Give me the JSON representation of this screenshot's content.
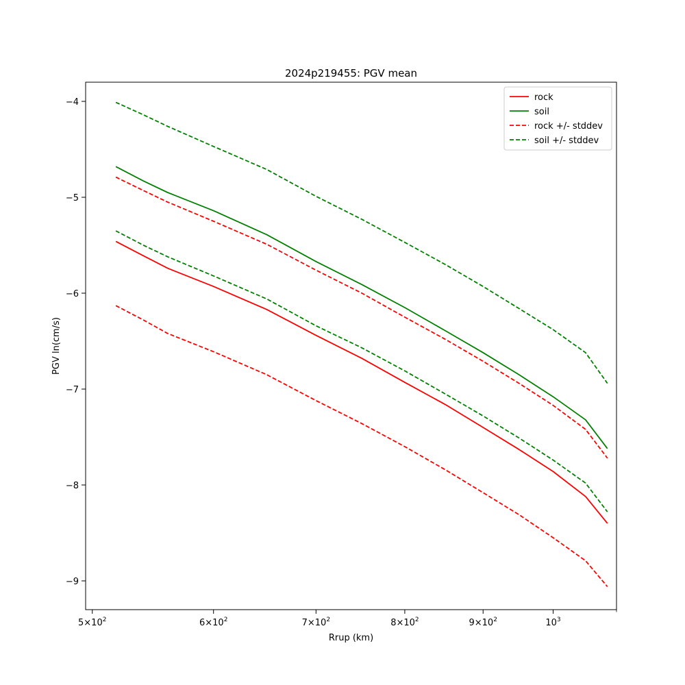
{
  "chart_data": {
    "type": "line",
    "title": "2024p219455: PGV mean",
    "xlabel": "Rrup (km)",
    "ylabel": "PGV ln(cm/s)",
    "xscale": "log",
    "xlim": [
      495,
      1100
    ],
    "ylim": [
      -9.3,
      -3.8
    ],
    "x_ticks": [
      {
        "value": 500,
        "label": "5×10²",
        "base": "5×10",
        "exp": "2"
      },
      {
        "value": 600,
        "label": "6×10²",
        "base": "6×10",
        "exp": "2"
      },
      {
        "value": 700,
        "label": "7×10²",
        "base": "7×10",
        "exp": "2"
      },
      {
        "value": 800,
        "label": "8×10²",
        "base": "8×10",
        "exp": "2"
      },
      {
        "value": 900,
        "label": "9×10²",
        "base": "9×10",
        "exp": "2"
      },
      {
        "value": 1000,
        "label": "10³",
        "base": "10",
        "exp": "3"
      }
    ],
    "y_ticks": [
      {
        "value": -4,
        "label": "−4"
      },
      {
        "value": -5,
        "label": "−5"
      },
      {
        "value": -6,
        "label": "−6"
      },
      {
        "value": -7,
        "label": "−7"
      },
      {
        "value": -8,
        "label": "−8"
      },
      {
        "value": -9,
        "label": "−9"
      }
    ],
    "legend_position": "top-right",
    "grid": false,
    "series": [
      {
        "name": "rock",
        "color": "#ff0000",
        "style": "solid",
        "x": [
          518,
          540,
          560,
          600,
          650,
          700,
          750,
          800,
          850,
          900,
          950,
          1000,
          1050,
          1085
        ],
        "y": [
          -5.46,
          -5.61,
          -5.74,
          -5.93,
          -6.17,
          -6.44,
          -6.68,
          -6.93,
          -7.16,
          -7.4,
          -7.63,
          -7.86,
          -8.12,
          -8.4
        ]
      },
      {
        "name": "soil",
        "color": "#008000",
        "style": "solid",
        "x": [
          518,
          540,
          560,
          600,
          650,
          700,
          750,
          800,
          850,
          900,
          950,
          1000,
          1050,
          1085
        ],
        "y": [
          -4.68,
          -4.83,
          -4.95,
          -5.14,
          -5.39,
          -5.67,
          -5.91,
          -6.15,
          -6.39,
          -6.62,
          -6.85,
          -7.08,
          -7.32,
          -7.62
        ]
      },
      {
        "name": "rock +/- stddev",
        "color": "#ff0000",
        "style": "dashed",
        "x": [
          518,
          540,
          560,
          600,
          650,
          700,
          750,
          800,
          850,
          900,
          950,
          1000,
          1050,
          1085
        ],
        "y": [
          -4.79,
          -4.93,
          -5.05,
          -5.25,
          -5.49,
          -5.76,
          -6.0,
          -6.25,
          -6.48,
          -6.71,
          -6.94,
          -7.17,
          -7.42,
          -7.72
        ]
      },
      {
        "name": "soil +/- stddev",
        "color": "#008000",
        "style": "dashed",
        "x": [
          518,
          540,
          560,
          600,
          650,
          700,
          750,
          800,
          850,
          900,
          950,
          1000,
          1050,
          1085
        ],
        "y": [
          -4.01,
          -4.14,
          -4.26,
          -4.47,
          -4.71,
          -4.99,
          -5.23,
          -5.47,
          -5.7,
          -5.93,
          -6.16,
          -6.38,
          -6.62,
          -6.94
        ]
      }
    ],
    "extra_lines": [
      {
        "series": "rock +/- stddev",
        "color": "#ff0000",
        "style": "dashed",
        "x": [
          518,
          540,
          560,
          600,
          650,
          700,
          750,
          800,
          850,
          900,
          950,
          1000,
          1050,
          1085
        ],
        "y": [
          -6.13,
          -6.28,
          -6.42,
          -6.61,
          -6.85,
          -7.12,
          -7.36,
          -7.6,
          -7.84,
          -8.08,
          -8.31,
          -8.55,
          -8.79,
          -9.06
        ]
      },
      {
        "series": "soil +/- stddev",
        "color": "#008000",
        "style": "dashed",
        "x": [
          518,
          540,
          560,
          600,
          650,
          700,
          750,
          800,
          850,
          900,
          950,
          1000,
          1050,
          1085
        ],
        "y": [
          -5.35,
          -5.5,
          -5.62,
          -5.82,
          -6.06,
          -6.34,
          -6.57,
          -6.81,
          -7.05,
          -7.28,
          -7.51,
          -7.74,
          -7.98,
          -8.28
        ]
      }
    ]
  }
}
